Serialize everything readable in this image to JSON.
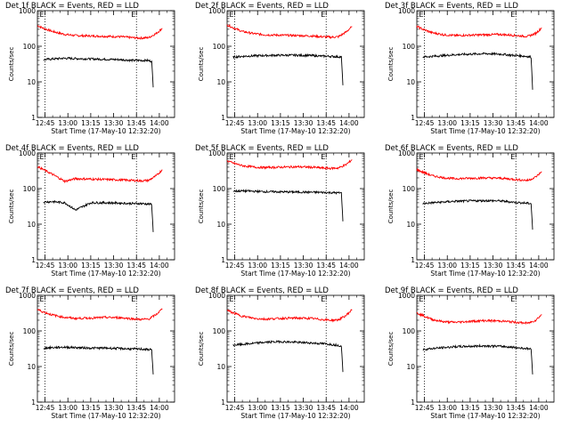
{
  "chart_data": [
    {
      "type": "line",
      "title": "Det 1f BLACK = Events, RED = LLD",
      "ylabel": "Counts/sec",
      "xlabel": "Start Time (17-May-10 12:32:20)",
      "x_ticks": [
        "12:45",
        "13:00",
        "13:15",
        "13:30",
        "13:45",
        "14:00"
      ],
      "y_ticks": [
        "1",
        "10",
        "100",
        "1000"
      ],
      "ylim": [
        1,
        1000
      ],
      "yscale": "log",
      "markers": [
        "E",
        "E"
      ],
      "series": [
        {
          "color": "#ff0000",
          "x": [
            "12:40",
            "12:44",
            "12:50",
            "12:58",
            "13:05",
            "13:15",
            "13:25",
            "13:35",
            "13:42",
            "13:48",
            "13:53",
            "13:58",
            "14:02"
          ],
          "y": [
            380,
            320,
            260,
            215,
            200,
            195,
            190,
            185,
            175,
            170,
            175,
            230,
            320
          ]
        },
        {
          "color": "#000000",
          "x": [
            "12:44",
            "12:50",
            "12:58",
            "13:05",
            "13:15",
            "13:25",
            "13:35",
            "13:42",
            "13:48",
            "13:52",
            "13:55",
            "13:56"
          ],
          "y": [
            42,
            44,
            46,
            45,
            44,
            43,
            42,
            40,
            40,
            40,
            38,
            7
          ]
        }
      ]
    },
    {
      "type": "line",
      "title": "Det 2f BLACK = Events, RED = LLD",
      "ylabel": "Counts/sec",
      "xlabel": "Start Time (17-May-10 12:32:20)",
      "x_ticks": [
        "12:45",
        "13:00",
        "13:15",
        "13:30",
        "13:45",
        "14:00"
      ],
      "y_ticks": [
        "1",
        "10",
        "100",
        "1000"
      ],
      "ylim": [
        1,
        1000
      ],
      "yscale": "log",
      "markers": [
        "E",
        "E"
      ],
      "series": [
        {
          "color": "#ff0000",
          "x": [
            "12:40",
            "12:44",
            "12:50",
            "12:58",
            "13:05",
            "13:15",
            "13:25",
            "13:35",
            "13:42",
            "13:48",
            "13:53",
            "13:58",
            "14:02"
          ],
          "y": [
            400,
            330,
            260,
            225,
            210,
            205,
            200,
            195,
            185,
            180,
            185,
            250,
            360
          ]
        },
        {
          "color": "#000000",
          "x": [
            "12:44",
            "12:50",
            "12:58",
            "13:05",
            "13:15",
            "13:25",
            "13:35",
            "13:42",
            "13:48",
            "13:52",
            "13:55",
            "13:56"
          ],
          "y": [
            50,
            52,
            54,
            55,
            56,
            56,
            55,
            53,
            52,
            51,
            50,
            8
          ]
        }
      ]
    },
    {
      "type": "line",
      "title": "Det 3f BLACK = Events, RED = LLD",
      "ylabel": "Counts/sec",
      "xlabel": "Start Time (17-May-10 12:32:20)",
      "x_ticks": [
        "12:45",
        "13:00",
        "13:15",
        "13:30",
        "13:45",
        "14:00"
      ],
      "y_ticks": [
        "1",
        "10",
        "100",
        "1000"
      ],
      "ylim": [
        1,
        1000
      ],
      "yscale": "log",
      "markers": [
        "E",
        "E"
      ],
      "series": [
        {
          "color": "#ff0000",
          "x": [
            "12:40",
            "12:44",
            "12:50",
            "12:58",
            "13:05",
            "13:15",
            "13:25",
            "13:35",
            "13:42",
            "13:48",
            "13:53",
            "13:58",
            "14:02"
          ],
          "y": [
            360,
            300,
            240,
            210,
            200,
            205,
            210,
            215,
            205,
            195,
            190,
            230,
            330
          ]
        },
        {
          "color": "#000000",
          "x": [
            "12:44",
            "12:50",
            "12:58",
            "13:05",
            "13:15",
            "13:25",
            "13:35",
            "13:42",
            "13:48",
            "13:52",
            "13:55",
            "13:56"
          ],
          "y": [
            50,
            52,
            55,
            58,
            60,
            62,
            60,
            56,
            54,
            52,
            50,
            6
          ]
        }
      ]
    },
    {
      "type": "line",
      "title": "Det 4f BLACK = Events, RED = LLD",
      "ylabel": "Counts/sec",
      "xlabel": "Start Time (17-May-10 12:32:20)",
      "x_ticks": [
        "12:45",
        "13:00",
        "13:15",
        "13:30",
        "13:45",
        "14:00"
      ],
      "y_ticks": [
        "1",
        "10",
        "100",
        "1000"
      ],
      "ylim": [
        1,
        1000
      ],
      "yscale": "log",
      "markers": [
        "E",
        "E"
      ],
      "series": [
        {
          "color": "#ff0000",
          "x": [
            "12:40",
            "12:44",
            "12:50",
            "12:58",
            "13:05",
            "13:15",
            "13:25",
            "13:35",
            "13:42",
            "13:48",
            "13:53",
            "13:58",
            "14:02"
          ],
          "y": [
            420,
            340,
            250,
            160,
            190,
            185,
            180,
            175,
            170,
            165,
            170,
            230,
            340
          ]
        },
        {
          "color": "#000000",
          "x": [
            "12:44",
            "12:50",
            "12:58",
            "13:05",
            "13:15",
            "13:25",
            "13:35",
            "13:42",
            "13:48",
            "13:52",
            "13:55",
            "13:56"
          ],
          "y": [
            42,
            43,
            40,
            25,
            40,
            40,
            39,
            38,
            38,
            37,
            36,
            6
          ]
        }
      ]
    },
    {
      "type": "line",
      "title": "Det 5f BLACK = Events, RED = LLD",
      "ylabel": "Counts/sec",
      "xlabel": "Start Time (17-May-10 12:32:20)",
      "x_ticks": [
        "12:45",
        "13:00",
        "13:15",
        "13:30",
        "13:45",
        "14:00"
      ],
      "y_ticks": [
        "1",
        "10",
        "100",
        "1000"
      ],
      "ylim": [
        1,
        1000
      ],
      "yscale": "log",
      "markers": [
        "E",
        "E"
      ],
      "series": [
        {
          "color": "#ff0000",
          "x": [
            "12:40",
            "12:44",
            "12:50",
            "12:58",
            "13:05",
            "13:15",
            "13:25",
            "13:35",
            "13:42",
            "13:48",
            "13:53",
            "13:58",
            "14:02"
          ],
          "y": [
            600,
            520,
            440,
            400,
            390,
            400,
            410,
            400,
            380,
            370,
            380,
            470,
            650
          ]
        },
        {
          "color": "#000000",
          "x": [
            "12:44",
            "12:50",
            "12:58",
            "13:05",
            "13:15",
            "13:25",
            "13:35",
            "13:42",
            "13:48",
            "13:52",
            "13:55",
            "13:56"
          ],
          "y": [
            85,
            86,
            84,
            82,
            81,
            80,
            79,
            78,
            77,
            76,
            75,
            12
          ]
        }
      ]
    },
    {
      "type": "line",
      "title": "Det 6f BLACK = Events, RED = LLD",
      "ylabel": "Counts/sec",
      "xlabel": "Start Time (17-May-10 12:32:20)",
      "x_ticks": [
        "12:45",
        "13:00",
        "13:15",
        "13:30",
        "13:45",
        "14:00"
      ],
      "y_ticks": [
        "1",
        "10",
        "100",
        "1000"
      ],
      "ylim": [
        1,
        1000
      ],
      "yscale": "log",
      "markers": [
        "E",
        "E"
      ],
      "series": [
        {
          "color": "#ff0000",
          "x": [
            "12:40",
            "12:44",
            "12:50",
            "12:58",
            "13:05",
            "13:15",
            "13:25",
            "13:35",
            "13:42",
            "13:48",
            "13:53",
            "13:58",
            "14:02"
          ],
          "y": [
            340,
            290,
            230,
            200,
            190,
            195,
            200,
            195,
            185,
            175,
            170,
            210,
            300
          ]
        },
        {
          "color": "#000000",
          "x": [
            "12:44",
            "12:50",
            "12:58",
            "13:05",
            "13:15",
            "13:25",
            "13:35",
            "13:42",
            "13:48",
            "13:52",
            "13:55",
            "13:56"
          ],
          "y": [
            38,
            40,
            42,
            44,
            45,
            46,
            45,
            42,
            40,
            39,
            38,
            7
          ]
        }
      ]
    },
    {
      "type": "line",
      "title": "Det 7f BLACK = Events, RED = LLD",
      "ylabel": "Counts/sec",
      "xlabel": "Start Time (17-May-10 12:32:20)",
      "x_ticks": [
        "12:45",
        "13:00",
        "13:15",
        "13:30",
        "13:45",
        "14:00"
      ],
      "y_ticks": [
        "1",
        "10",
        "100",
        "1000"
      ],
      "ylim": [
        1,
        1000
      ],
      "yscale": "log",
      "markers": [
        "E",
        "E"
      ],
      "series": [
        {
          "color": "#ff0000",
          "x": [
            "12:40",
            "12:44",
            "12:50",
            "12:58",
            "13:05",
            "13:15",
            "13:25",
            "13:35",
            "13:42",
            "13:48",
            "13:53",
            "13:58",
            "14:02"
          ],
          "y": [
            400,
            340,
            280,
            240,
            225,
            230,
            240,
            235,
            220,
            210,
            215,
            290,
            420
          ]
        },
        {
          "color": "#000000",
          "x": [
            "12:44",
            "12:50",
            "12:58",
            "13:05",
            "13:15",
            "13:25",
            "13:35",
            "13:42",
            "13:48",
            "13:52",
            "13:55",
            "13:56"
          ],
          "y": [
            33,
            34,
            35,
            34,
            33,
            33,
            32,
            31,
            31,
            30,
            30,
            6
          ]
        }
      ]
    },
    {
      "type": "line",
      "title": "Det 8f BLACK = Events, RED = LLD",
      "ylabel": "Counts/sec",
      "xlabel": "Start Time (17-May-10 12:32:20)",
      "x_ticks": [
        "12:45",
        "13:00",
        "13:15",
        "13:30",
        "13:45",
        "14:00"
      ],
      "y_ticks": [
        "1",
        "10",
        "100",
        "1000"
      ],
      "ylim": [
        1,
        1000
      ],
      "yscale": "log",
      "markers": [
        "E",
        "E"
      ],
      "series": [
        {
          "color": "#ff0000",
          "x": [
            "12:40",
            "12:44",
            "12:50",
            "12:58",
            "13:05",
            "13:15",
            "13:25",
            "13:35",
            "13:42",
            "13:48",
            "13:53",
            "13:58",
            "14:02"
          ],
          "y": [
            380,
            320,
            260,
            225,
            215,
            225,
            230,
            225,
            210,
            200,
            205,
            270,
            400
          ]
        },
        {
          "color": "#000000",
          "x": [
            "12:44",
            "12:50",
            "12:58",
            "13:05",
            "13:15",
            "13:25",
            "13:35",
            "13:42",
            "13:48",
            "13:52",
            "13:55",
            "13:56"
          ],
          "y": [
            40,
            42,
            45,
            48,
            50,
            48,
            46,
            44,
            42,
            40,
            38,
            7
          ]
        }
      ]
    },
    {
      "type": "line",
      "title": "Det 9f BLACK = Events, RED = LLD",
      "ylabel": "Counts/sec",
      "xlabel": "Start Time (17-May-10 12:32:20)",
      "x_ticks": [
        "12:45",
        "13:00",
        "13:15",
        "13:30",
        "13:45",
        "14:00"
      ],
      "y_ticks": [
        "1",
        "10",
        "100",
        "1000"
      ],
      "ylim": [
        1,
        1000
      ],
      "yscale": "log",
      "markers": [
        "E",
        "E"
      ],
      "series": [
        {
          "color": "#ff0000",
          "x": [
            "12:40",
            "12:44",
            "12:50",
            "12:58",
            "13:05",
            "13:15",
            "13:25",
            "13:35",
            "13:42",
            "13:48",
            "13:53",
            "13:58",
            "14:02"
          ],
          "y": [
            320,
            270,
            210,
            180,
            175,
            185,
            195,
            190,
            180,
            170,
            165,
            200,
            290
          ]
        },
        {
          "color": "#000000",
          "x": [
            "12:44",
            "12:50",
            "12:58",
            "13:05",
            "13:15",
            "13:25",
            "13:35",
            "13:42",
            "13:48",
            "13:52",
            "13:55",
            "13:56"
          ],
          "y": [
            30,
            32,
            34,
            36,
            37,
            38,
            37,
            35,
            33,
            32,
            31,
            6
          ]
        }
      ]
    }
  ]
}
